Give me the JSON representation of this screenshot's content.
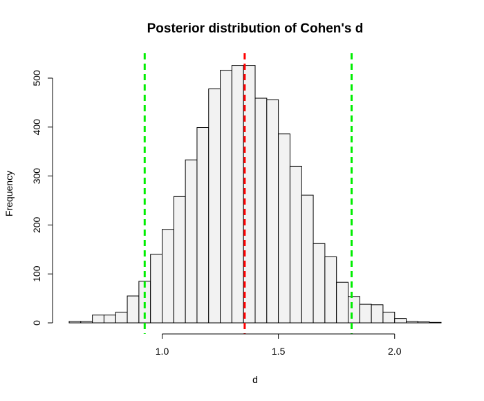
{
  "chart_data": {
    "type": "bar",
    "title": "Posterior distribution of Cohen's d",
    "xlabel": "d",
    "ylabel": "Frequency",
    "xlim": [
      0.6,
      2.2
    ],
    "ylim": [
      0,
      530
    ],
    "x_axis_range": [
      1.0,
      2.0
    ],
    "x_ticks": [
      1.0,
      1.5,
      2.0
    ],
    "x_tick_labels": [
      "1.0",
      "1.5",
      "2.0"
    ],
    "y_ticks": [
      0,
      100,
      200,
      300,
      400,
      500
    ],
    "y_tick_labels": [
      "0",
      "100",
      "200",
      "300",
      "400",
      "500"
    ],
    "grid": false,
    "legend": "none",
    "bin_width": 0.05,
    "bins": [
      {
        "start": 0.6,
        "end": 0.65,
        "count": 3
      },
      {
        "start": 0.65,
        "end": 0.7,
        "count": 3
      },
      {
        "start": 0.7,
        "end": 0.75,
        "count": 16
      },
      {
        "start": 0.75,
        "end": 0.8,
        "count": 16
      },
      {
        "start": 0.8,
        "end": 0.85,
        "count": 22
      },
      {
        "start": 0.85,
        "end": 0.9,
        "count": 55
      },
      {
        "start": 0.9,
        "end": 0.95,
        "count": 85
      },
      {
        "start": 0.95,
        "end": 1.0,
        "count": 140
      },
      {
        "start": 1.0,
        "end": 1.05,
        "count": 191
      },
      {
        "start": 1.05,
        "end": 1.1,
        "count": 258
      },
      {
        "start": 1.1,
        "end": 1.15,
        "count": 333
      },
      {
        "start": 1.15,
        "end": 1.2,
        "count": 399
      },
      {
        "start": 1.2,
        "end": 1.25,
        "count": 478
      },
      {
        "start": 1.25,
        "end": 1.3,
        "count": 516
      },
      {
        "start": 1.3,
        "end": 1.35,
        "count": 526
      },
      {
        "start": 1.35,
        "end": 1.4,
        "count": 526
      },
      {
        "start": 1.4,
        "end": 1.45,
        "count": 459
      },
      {
        "start": 1.45,
        "end": 1.5,
        "count": 456
      },
      {
        "start": 1.5,
        "end": 1.55,
        "count": 386
      },
      {
        "start": 1.55,
        "end": 1.6,
        "count": 320
      },
      {
        "start": 1.6,
        "end": 1.65,
        "count": 261
      },
      {
        "start": 1.65,
        "end": 1.7,
        "count": 162
      },
      {
        "start": 1.7,
        "end": 1.75,
        "count": 135
      },
      {
        "start": 1.75,
        "end": 1.8,
        "count": 83
      },
      {
        "start": 1.8,
        "end": 1.85,
        "count": 54
      },
      {
        "start": 1.85,
        "end": 1.9,
        "count": 38
      },
      {
        "start": 1.9,
        "end": 1.95,
        "count": 37
      },
      {
        "start": 1.95,
        "end": 2.0,
        "count": 22
      },
      {
        "start": 2.0,
        "end": 2.05,
        "count": 9
      },
      {
        "start": 2.05,
        "end": 2.1,
        "count": 3
      },
      {
        "start": 2.1,
        "end": 2.15,
        "count": 2
      },
      {
        "start": 2.15,
        "end": 2.2,
        "count": 1
      }
    ],
    "bar_fill": "#f2f2f2",
    "bar_stroke": "#000000",
    "reference_lines": [
      {
        "role": "lower-interval-bound",
        "x": 0.925,
        "color": "#00ee00",
        "style": "dashed"
      },
      {
        "role": "central-estimate",
        "x": 1.355,
        "color": "#ff0000",
        "style": "dashed"
      },
      {
        "role": "upper-interval-bound",
        "x": 1.815,
        "color": "#00ee00",
        "style": "dashed"
      }
    ]
  }
}
